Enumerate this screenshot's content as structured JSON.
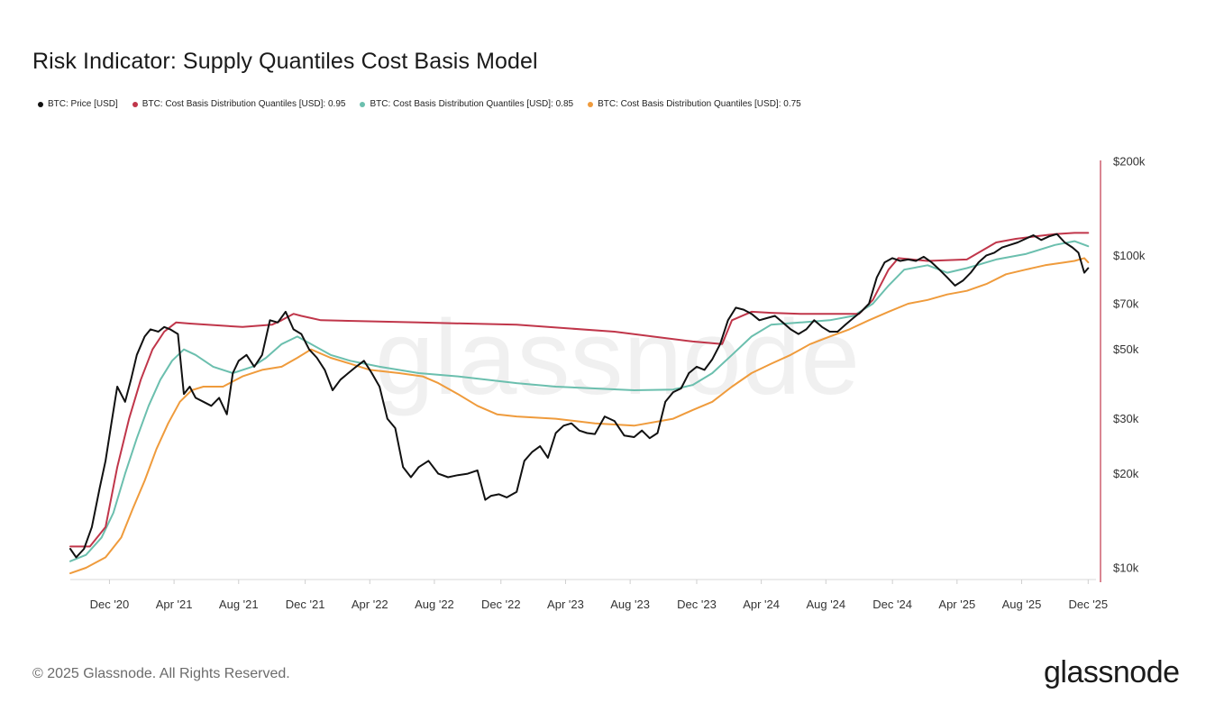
{
  "title": "Risk Indicator: Supply Quantiles Cost Basis Model",
  "footer": {
    "copyright": "© 2025 Glassnode. All Rights Reserved.",
    "brand": "glassnode"
  },
  "watermark": "glassnode",
  "colors": {
    "price": "#111111",
    "q95": "#c0364a",
    "q85": "#6bbfae",
    "q75": "#ef9b3c",
    "axis_right": "#c0364a"
  },
  "chart_data": {
    "type": "line",
    "title": "Risk Indicator: Supply Quantiles Cost Basis Model",
    "yscale": "log",
    "ylim": [
      9000,
      200000
    ],
    "xlim": [
      2020.72,
      2025.96
    ],
    "y_ticks": [
      {
        "value": 200000,
        "label": "$200k"
      },
      {
        "value": 100000,
        "label": "$100k"
      },
      {
        "value": 70000,
        "label": "$70k"
      },
      {
        "value": 50000,
        "label": "$50k"
      },
      {
        "value": 30000,
        "label": "$30k"
      },
      {
        "value": 20000,
        "label": "$20k"
      },
      {
        "value": 10000,
        "label": "$10k"
      }
    ],
    "x_ticks": [
      {
        "value": 2020.92,
        "label": "Dec '20"
      },
      {
        "value": 2021.25,
        "label": "Apr '21"
      },
      {
        "value": 2021.58,
        "label": "Aug '21"
      },
      {
        "value": 2021.92,
        "label": "Dec '21"
      },
      {
        "value": 2022.25,
        "label": "Apr '22"
      },
      {
        "value": 2022.58,
        "label": "Aug '22"
      },
      {
        "value": 2022.92,
        "label": "Dec '22"
      },
      {
        "value": 2023.25,
        "label": "Apr '23"
      },
      {
        "value": 2023.58,
        "label": "Aug '23"
      },
      {
        "value": 2023.92,
        "label": "Dec '23"
      },
      {
        "value": 2024.25,
        "label": "Apr '24"
      },
      {
        "value": 2024.58,
        "label": "Aug '24"
      },
      {
        "value": 2024.92,
        "label": "Dec '24"
      },
      {
        "value": 2025.25,
        "label": "Apr '25"
      },
      {
        "value": 2025.58,
        "label": "Aug '25"
      },
      {
        "value": 2025.92,
        "label": "Dec '25"
      }
    ],
    "series": [
      {
        "name": "BTC: Price [USD]",
        "key": "price",
        "x": [
          2020.72,
          2020.75,
          2020.79,
          2020.83,
          2020.87,
          2020.9,
          2020.93,
          2020.96,
          2021.0,
          2021.03,
          2021.06,
          2021.1,
          2021.13,
          2021.17,
          2021.2,
          2021.23,
          2021.27,
          2021.3,
          2021.33,
          2021.36,
          2021.4,
          2021.44,
          2021.48,
          2021.52,
          2021.55,
          2021.58,
          2021.62,
          2021.66,
          2021.7,
          2021.74,
          2021.78,
          2021.82,
          2021.86,
          2021.9,
          2021.94,
          2021.98,
          2022.02,
          2022.06,
          2022.1,
          2022.14,
          2022.18,
          2022.22,
          2022.26,
          2022.3,
          2022.34,
          2022.38,
          2022.42,
          2022.46,
          2022.5,
          2022.55,
          2022.6,
          2022.65,
          2022.7,
          2022.75,
          2022.8,
          2022.84,
          2022.87,
          2022.91,
          2022.95,
          2023.0,
          2023.04,
          2023.08,
          2023.12,
          2023.16,
          2023.2,
          2023.24,
          2023.28,
          2023.32,
          2023.36,
          2023.4,
          2023.45,
          2023.5,
          2023.55,
          2023.6,
          2023.64,
          2023.68,
          2023.72,
          2023.76,
          2023.8,
          2023.84,
          2023.88,
          2023.92,
          2023.96,
          2024.0,
          2024.04,
          2024.08,
          2024.12,
          2024.16,
          2024.2,
          2024.24,
          2024.28,
          2024.32,
          2024.36,
          2024.4,
          2024.44,
          2024.48,
          2024.52,
          2024.56,
          2024.6,
          2024.64,
          2024.68,
          2024.72,
          2024.76,
          2024.8,
          2024.84,
          2024.88,
          2024.92,
          2024.96,
          2025.0,
          2025.04,
          2025.08,
          2025.12,
          2025.16,
          2025.2,
          2025.24,
          2025.28,
          2025.32,
          2025.36,
          2025.4,
          2025.44,
          2025.48,
          2025.52,
          2025.56,
          2025.6,
          2025.64,
          2025.68,
          2025.72,
          2025.76,
          2025.8,
          2025.84,
          2025.87,
          2025.9,
          2025.92
        ],
        "values": [
          11500,
          10800,
          11500,
          13500,
          18000,
          22000,
          29000,
          38000,
          34000,
          40000,
          48000,
          55000,
          58000,
          57000,
          59000,
          58000,
          56000,
          36000,
          38000,
          35000,
          34000,
          33000,
          35000,
          31000,
          42000,
          46000,
          48000,
          44000,
          48000,
          62000,
          61000,
          66000,
          58000,
          56000,
          50000,
          47000,
          43000,
          37000,
          40000,
          42000,
          44000,
          46000,
          42000,
          38000,
          30000,
          28000,
          21000,
          19500,
          21000,
          22000,
          20000,
          19500,
          19800,
          20000,
          20500,
          16500,
          17000,
          17200,
          16800,
          17500,
          22000,
          23500,
          24500,
          22500,
          27000,
          28500,
          29000,
          27500,
          27000,
          26800,
          30500,
          29500,
          26500,
          26200,
          27500,
          26000,
          27000,
          34000,
          36500,
          37500,
          42000,
          44000,
          43000,
          46500,
          52000,
          62000,
          68000,
          67000,
          65000,
          62000,
          63000,
          64000,
          61000,
          58000,
          56000,
          58000,
          62000,
          59000,
          57000,
          57000,
          60000,
          63000,
          66000,
          70000,
          85000,
          95000,
          98000,
          96000,
          97000,
          96000,
          99000,
          95000,
          90000,
          85000,
          80000,
          83000,
          88000,
          95000,
          100000,
          102000,
          106000,
          108000,
          110000,
          113000,
          116000,
          112000,
          115000,
          117000,
          110000,
          106000,
          102000,
          88000,
          91000
        ]
      },
      {
        "name": "BTC: Cost Basis Distribution Quantiles [USD]: 0.95",
        "key": "q95",
        "x": [
          2020.72,
          2020.82,
          2020.9,
          2020.96,
          2021.02,
          2021.08,
          2021.14,
          2021.2,
          2021.26,
          2021.33,
          2021.6,
          2021.75,
          2021.8,
          2021.86,
          2021.9,
          2021.95,
          2022.0,
          2022.5,
          2023.0,
          2023.5,
          2023.9,
          2024.05,
          2024.1,
          2024.2,
          2024.3,
          2024.45,
          2024.75,
          2024.82,
          2024.9,
          2024.95,
          2025.1,
          2025.3,
          2025.45,
          2025.55,
          2025.65,
          2025.75,
          2025.85,
          2025.92
        ],
        "values": [
          11700,
          11700,
          13500,
          21000,
          30000,
          40000,
          50000,
          57000,
          61000,
          60500,
          59000,
          60000,
          62000,
          65000,
          64000,
          63000,
          62000,
          61000,
          60000,
          57000,
          53000,
          52000,
          62000,
          66000,
          65500,
          65000,
          65000,
          72000,
          90000,
          98000,
          96000,
          97000,
          110000,
          113000,
          115000,
          117000,
          118000,
          118000
        ]
      },
      {
        "name": "BTC: Cost Basis Distribution Quantiles [USD]: 0.85",
        "key": "q85",
        "x": [
          2020.72,
          2020.8,
          2020.88,
          2020.94,
          2021.0,
          2021.06,
          2021.12,
          2021.18,
          2021.24,
          2021.3,
          2021.36,
          2021.45,
          2021.55,
          2021.65,
          2021.72,
          2021.8,
          2021.88,
          2021.95,
          2022.05,
          2022.15,
          2022.3,
          2022.5,
          2022.7,
          2023.0,
          2023.2,
          2023.4,
          2023.6,
          2023.8,
          2023.9,
          2024.0,
          2024.1,
          2024.2,
          2024.3,
          2024.45,
          2024.6,
          2024.72,
          2024.82,
          2024.9,
          2024.98,
          2025.1,
          2025.2,
          2025.3,
          2025.45,
          2025.6,
          2025.75,
          2025.85,
          2025.92
        ],
        "values": [
          10500,
          11000,
          12500,
          15000,
          20000,
          26000,
          33000,
          40000,
          46000,
          50000,
          48000,
          44000,
          42000,
          44000,
          47000,
          52000,
          55000,
          52000,
          48000,
          46000,
          44000,
          42000,
          41000,
          39000,
          38000,
          37500,
          37000,
          37200,
          38500,
          42000,
          48000,
          55000,
          60000,
          61000,
          62000,
          64000,
          70000,
          80000,
          90000,
          93000,
          88000,
          91000,
          97000,
          101000,
          108000,
          111000,
          107000
        ]
      },
      {
        "name": "BTC: Cost Basis Distribution Quantiles [USD]: 0.75",
        "key": "q75",
        "x": [
          2020.72,
          2020.8,
          2020.9,
          2020.98,
          2021.04,
          2021.1,
          2021.16,
          2021.22,
          2021.28,
          2021.34,
          2021.4,
          2021.5,
          2021.6,
          2021.7,
          2021.8,
          2021.88,
          2021.95,
          2022.05,
          2022.15,
          2022.25,
          2022.4,
          2022.52,
          2022.6,
          2022.7,
          2022.8,
          2022.9,
          2023.0,
          2023.2,
          2023.4,
          2023.6,
          2023.8,
          2023.9,
          2024.0,
          2024.1,
          2024.2,
          2024.3,
          2024.4,
          2024.5,
          2024.6,
          2024.7,
          2024.8,
          2024.9,
          2025.0,
          2025.1,
          2025.2,
          2025.3,
          2025.4,
          2025.5,
          2025.6,
          2025.7,
          2025.8,
          2025.85,
          2025.9,
          2025.92
        ],
        "values": [
          9600,
          10000,
          10800,
          12500,
          15500,
          19000,
          24000,
          29000,
          34000,
          37000,
          38000,
          38000,
          41000,
          43000,
          44000,
          47000,
          50000,
          47000,
          45000,
          43000,
          42000,
          41000,
          39000,
          36000,
          33000,
          31000,
          30500,
          30000,
          29000,
          28500,
          30000,
          32000,
          34000,
          38000,
          42000,
          45000,
          48000,
          52000,
          55000,
          58000,
          62000,
          66000,
          70000,
          72000,
          75000,
          77000,
          81000,
          87000,
          90000,
          93000,
          95000,
          96000,
          98000,
          95000
        ]
      }
    ]
  }
}
